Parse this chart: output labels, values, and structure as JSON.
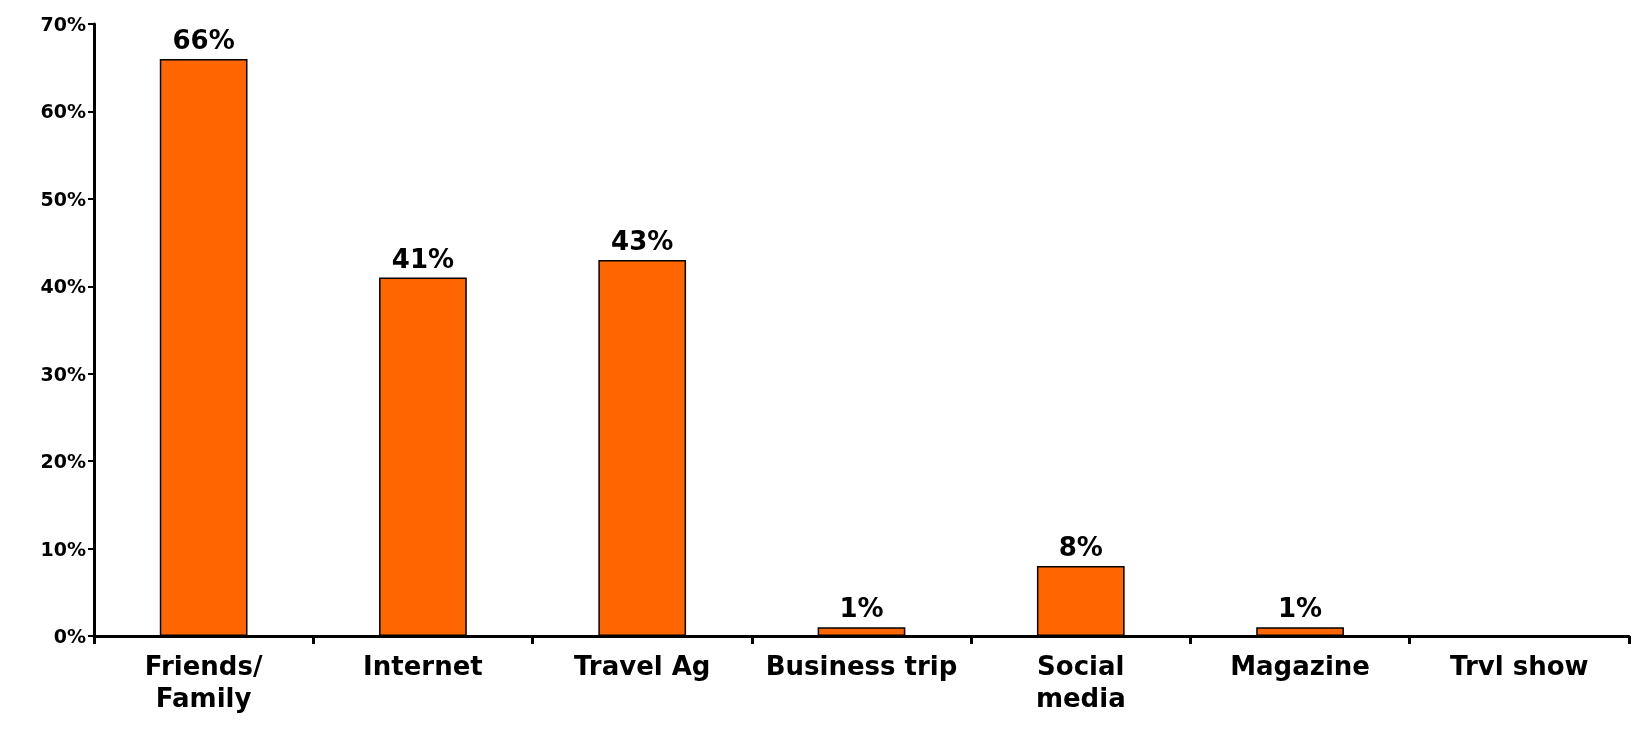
{
  "chart_data": {
    "type": "bar",
    "categories": [
      "Friends/\nFamily",
      "Internet",
      "Travel Ag",
      "Business trip",
      "Social\nmedia",
      "Magazine",
      "Trvl show"
    ],
    "values": [
      66,
      41,
      43,
      1,
      8,
      1,
      null
    ],
    "value_labels": [
      "66%",
      "41%",
      "43%",
      "1%",
      "8%",
      "1%",
      null
    ],
    "color": "#ff6600",
    "ylim": [
      0,
      70
    ],
    "yticks": [
      {
        "value": 0,
        "label": "0%"
      },
      {
        "value": 10,
        "label": "10%"
      },
      {
        "value": 20,
        "label": "20%"
      },
      {
        "value": 30,
        "label": "30%"
      },
      {
        "value": 40,
        "label": "40%"
      },
      {
        "value": 50,
        "label": "50%"
      },
      {
        "value": 60,
        "label": "60%"
      },
      {
        "value": 70,
        "label": "70%"
      }
    ],
    "grid": false
  }
}
